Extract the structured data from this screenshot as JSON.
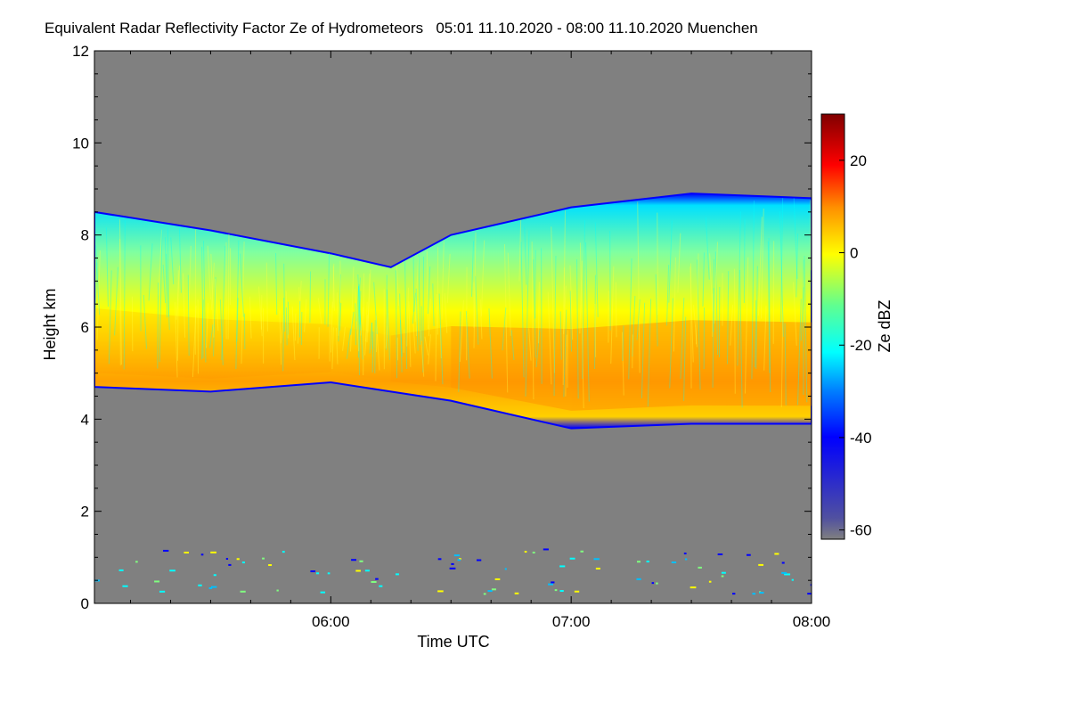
{
  "chart_data": {
    "type": "heatmap",
    "title": "Equivalent Radar Reflectivity Factor Ze of Hydrometeors   05:01 11.10.2020 - 08:00 11.10.2020 Muenchen",
    "xlabel": "Time UTC",
    "ylabel": "Height km",
    "colorbar_label": "Ze dBZ",
    "x_ticks": [
      "06:00",
      "07:00",
      "08:00"
    ],
    "x_range": [
      "05:01",
      "08:00"
    ],
    "y_ticks": [
      0,
      2,
      4,
      6,
      8,
      10,
      12
    ],
    "ylim": [
      0,
      12
    ],
    "colorbar_ticks": [
      -60,
      -40,
      -20,
      0,
      20
    ],
    "colorbar_range": [
      -62,
      30
    ],
    "background_color": "#808080",
    "colormap": [
      "#0000a0",
      "#0000ff",
      "#0080ff",
      "#00ffff",
      "#80ff80",
      "#ffff00",
      "#ff8000",
      "#ff0000",
      "#800000"
    ],
    "cloud_layer": {
      "time": [
        "05:01",
        "05:30",
        "06:00",
        "06:15",
        "06:30",
        "07:00",
        "07:30",
        "08:00"
      ],
      "base_km": [
        4.7,
        4.6,
        4.8,
        4.6,
        4.4,
        3.8,
        3.9,
        3.9
      ],
      "top_km": [
        8.5,
        8.1,
        7.6,
        7.3,
        8.0,
        8.6,
        8.9,
        8.8
      ],
      "max_reflectivity_dBZ": [
        -5,
        0,
        -5,
        -5,
        2,
        5,
        3,
        5
      ]
    }
  }
}
